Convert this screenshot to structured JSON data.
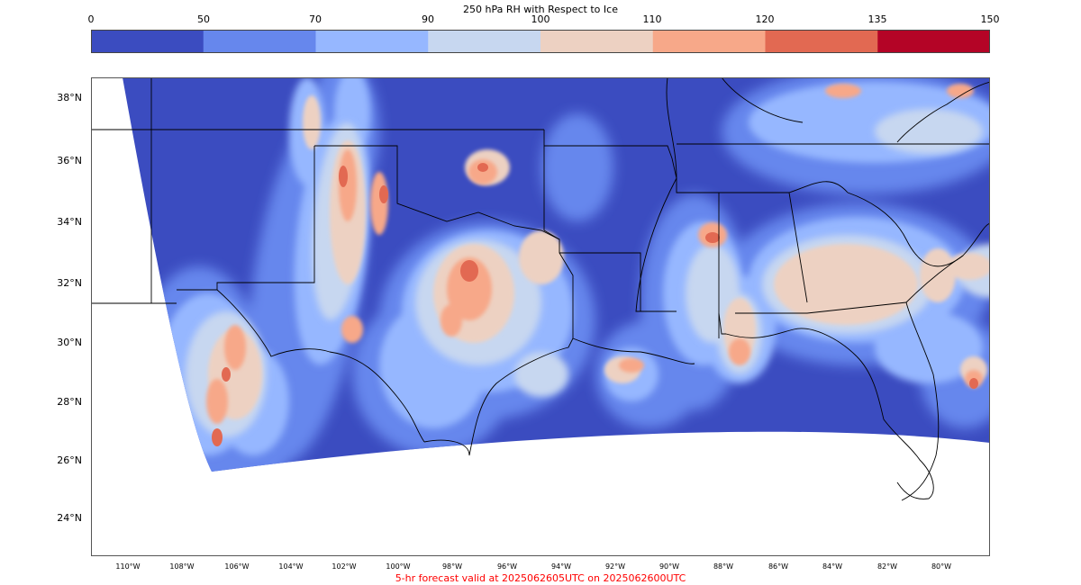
{
  "colorbar": {
    "title": "250 hPa RH with Respect to Ice",
    "ticks": [
      "0",
      "50",
      "70",
      "90",
      "100",
      "110",
      "120",
      "135",
      "150"
    ],
    "colors": [
      "#3b4cc0",
      "#6687ed",
      "#96b7ff",
      "#c7d7f0",
      "#edd1c2",
      "#f7a889",
      "#e26952",
      "#b40426"
    ]
  },
  "map": {
    "lat_labels": [
      "38°N",
      "36°N",
      "34°N",
      "32°N",
      "30°N",
      "28°N",
      "26°N",
      "24°N"
    ],
    "lon_labels": [
      "110°W",
      "108°W",
      "106°W",
      "104°W",
      "102°W",
      "100°W",
      "98°W",
      "96°W",
      "94°W",
      "92°W",
      "90°W",
      "88°W",
      "86°W",
      "84°W",
      "82°W",
      "80°W"
    ],
    "outline_color": "#000000",
    "background": "#ffffff"
  },
  "footer": {
    "text": "5-hr forecast valid at 2025062605UTC on 2025062600UTC",
    "color": "#ff0000"
  }
}
